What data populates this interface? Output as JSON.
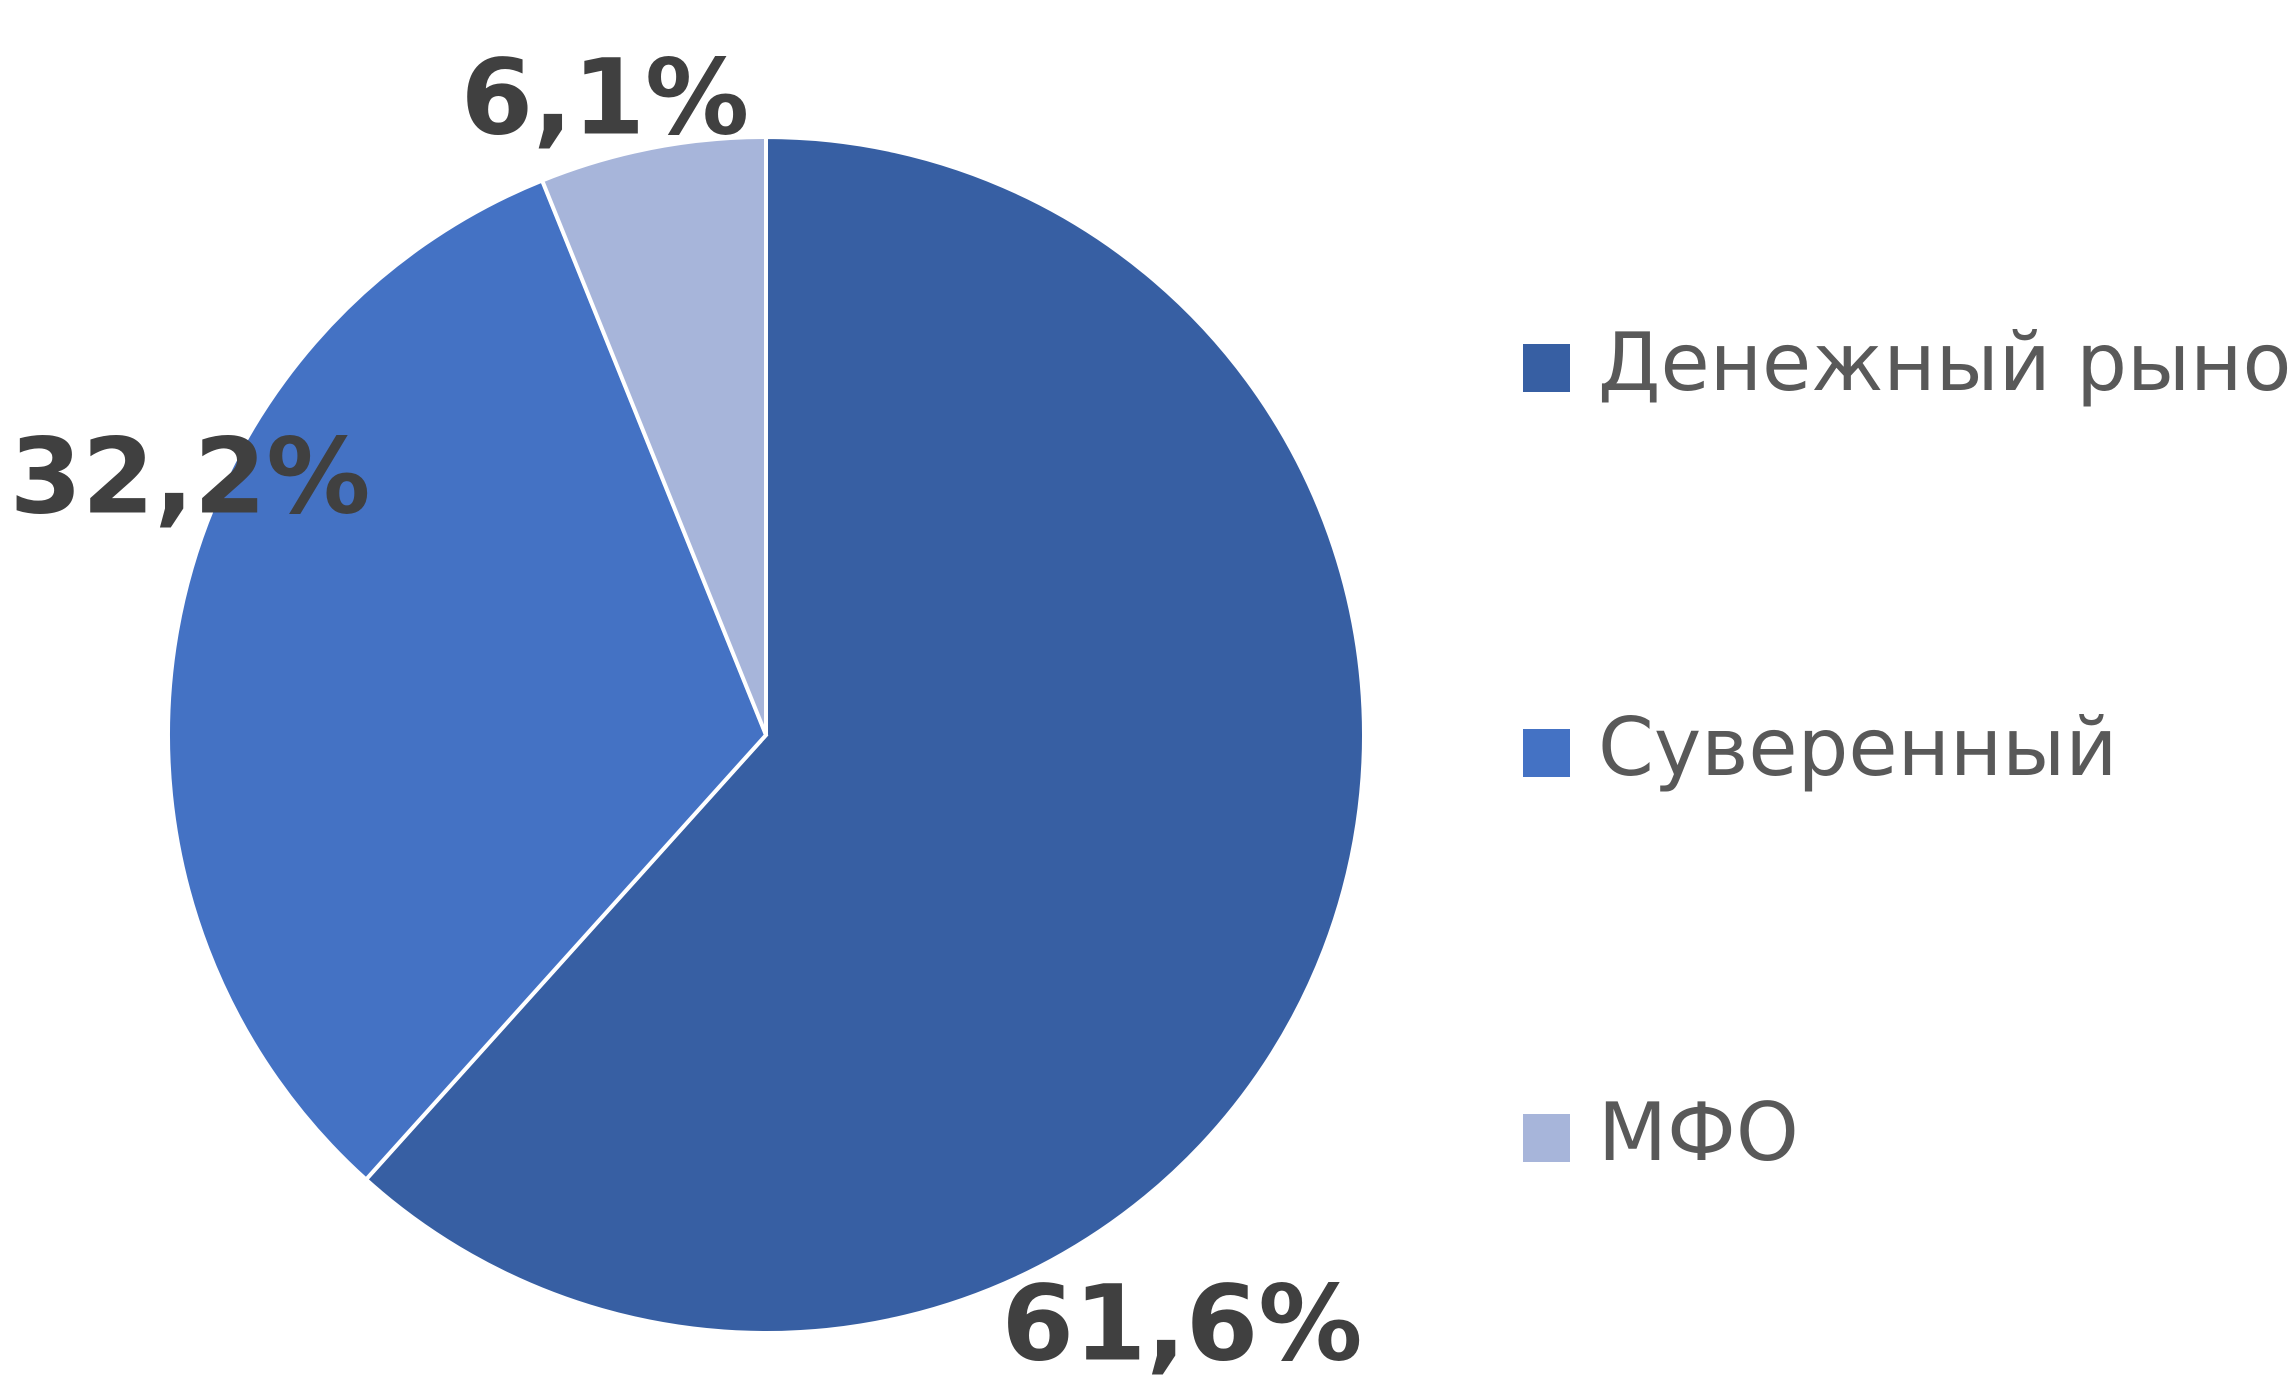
{
  "chart_data": {
    "type": "pie",
    "categories": [
      "Денежный рынок",
      "Суверенный",
      "МФО"
    ],
    "values": [
      61.6,
      32.2,
      6.1
    ],
    "value_labels": [
      "61,6%",
      "32,2%",
      "6,1%"
    ],
    "colors": [
      "#375fa3",
      "#4472c4",
      "#a7b5da"
    ],
    "legend": "right"
  }
}
